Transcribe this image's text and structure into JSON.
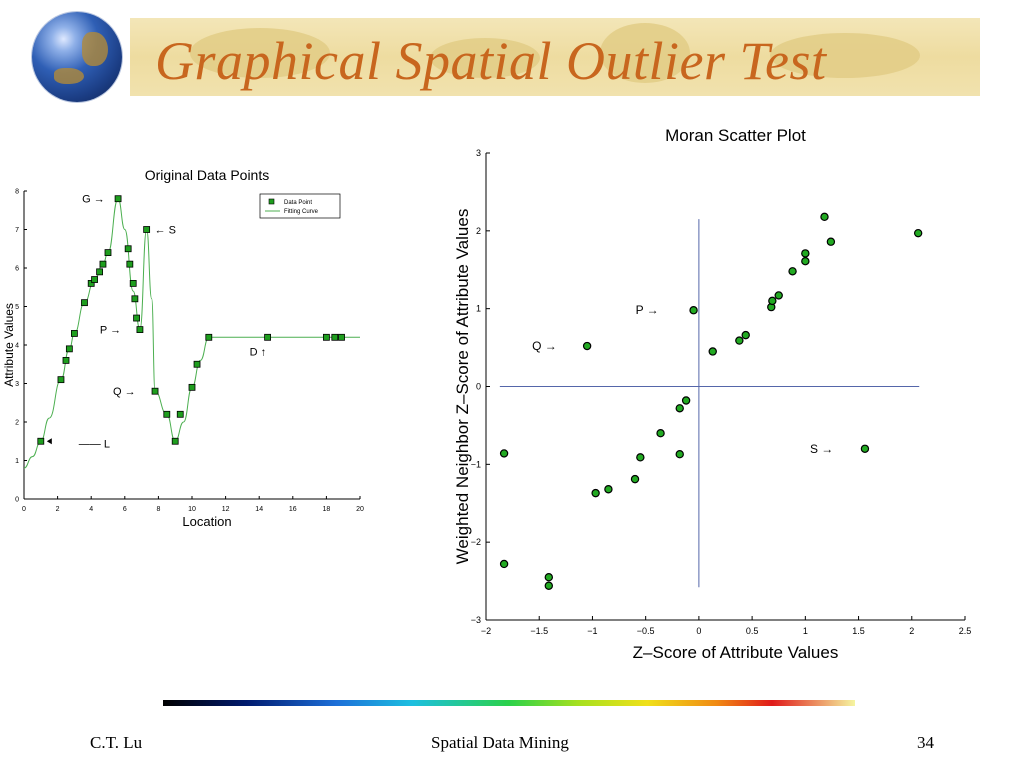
{
  "slide": {
    "title": "Graphical Spatial Outlier Test",
    "footer_left": "C.T. Lu",
    "footer_center": "Spatial Data Mining",
    "footer_right": "34"
  },
  "chart_data": [
    {
      "type": "line",
      "title": "Original Data Points",
      "xlabel": "Location",
      "ylabel": "Attribute Values",
      "xlim": [
        0,
        20
      ],
      "ylim": [
        0,
        8
      ],
      "xticks": [
        0,
        2,
        4,
        6,
        8,
        10,
        12,
        14,
        16,
        18,
        20
      ],
      "yticks": [
        0,
        1,
        2,
        3,
        4,
        5,
        6,
        7,
        8
      ],
      "legend": {
        "position": "top-right",
        "entries": [
          "Data Point",
          "Fitting Curve"
        ]
      },
      "series": [
        {
          "name": "Data Point",
          "x": [
            1.0,
            2.2,
            2.5,
            2.7,
            3.0,
            3.6,
            4.0,
            4.2,
            4.5,
            4.7,
            5.0,
            5.6,
            6.2,
            6.3,
            6.5,
            6.6,
            6.7,
            6.9,
            7.3,
            7.8,
            8.5,
            9.0,
            9.3,
            10.0,
            10.3,
            11.0,
            14.5,
            18.0,
            18.5,
            18.9
          ],
          "y": [
            1.5,
            3.1,
            3.6,
            3.9,
            4.3,
            5.1,
            5.6,
            5.7,
            5.9,
            6.1,
            6.4,
            7.8,
            6.5,
            6.1,
            5.6,
            5.2,
            4.7,
            4.4,
            7.0,
            2.8,
            2.2,
            1.5,
            2.2,
            2.9,
            3.5,
            4.2,
            4.2,
            4.2,
            4.2,
            4.2
          ]
        },
        {
          "name": "Fitting Curve",
          "x": [
            0.0,
            0.5,
            1.0,
            1.5,
            2.2,
            2.7,
            3.0,
            3.6,
            4.2,
            4.7,
            5.0,
            5.6,
            6.0,
            6.5,
            6.9,
            7.3,
            7.6,
            7.8,
            8.5,
            9.0,
            9.5,
            10.0,
            10.5,
            11.0,
            12.0,
            14.5,
            18.0,
            20.0
          ],
          "y": [
            0.8,
            1.1,
            1.5,
            2.1,
            3.1,
            3.9,
            4.3,
            5.1,
            5.7,
            6.1,
            6.4,
            7.8,
            7.0,
            5.4,
            4.4,
            7.0,
            5.2,
            2.8,
            2.2,
            1.5,
            2.0,
            2.9,
            3.6,
            4.2,
            4.2,
            4.2,
            4.2,
            4.2
          ]
        }
      ],
      "annotations": [
        {
          "text": "G",
          "x": 5.6,
          "y": 7.8
        },
        {
          "text": "S",
          "x": 7.3,
          "y": 7.0
        },
        {
          "text": "P",
          "x": 6.9,
          "y": 4.4
        },
        {
          "text": "Q",
          "x": 7.8,
          "y": 2.8
        },
        {
          "text": "D",
          "x": 14.5,
          "y": 4.2
        },
        {
          "text": "L",
          "x": 1.0,
          "y": 1.5
        }
      ],
      "colors": {
        "marker": "#1e9e1e",
        "line": "#4caf50"
      }
    },
    {
      "type": "scatter",
      "title": "Moran Scatter Plot",
      "xlabel": "Z–Score of Attribute Values",
      "ylabel": "Weighted Neighbor Z–Score of Attribute Values",
      "xlim": [
        -2,
        2.5
      ],
      "ylim": [
        -3,
        3
      ],
      "xticks": [
        -2,
        -1.5,
        -1,
        -0.5,
        0,
        0.5,
        1,
        1.5,
        2,
        2.5
      ],
      "yticks": [
        -3,
        -2,
        -1,
        0,
        1,
        2,
        3
      ],
      "points": {
        "x": [
          -1.83,
          -1.83,
          -1.41,
          -1.41,
          -1.05,
          -0.97,
          -0.85,
          -0.6,
          -0.55,
          -0.36,
          -0.18,
          -0.18,
          -0.12,
          -0.05,
          0.13,
          0.38,
          0.44,
          0.68,
          0.69,
          0.75,
          0.88,
          1.0,
          1.0,
          1.18,
          1.24,
          1.56,
          2.06
        ],
        "y": [
          -0.86,
          -2.28,
          -2.45,
          -2.56,
          0.52,
          -1.37,
          -1.32,
          -1.19,
          -0.91,
          -0.6,
          -0.87,
          -0.28,
          -0.18,
          0.98,
          0.45,
          0.59,
          0.66,
          1.02,
          1.1,
          1.17,
          1.48,
          1.61,
          1.71,
          2.18,
          1.86,
          -0.8,
          1.97
        ]
      },
      "annotations": [
        {
          "text": "P",
          "x": -0.05,
          "y": 0.98
        },
        {
          "text": "Q",
          "x": -1.05,
          "y": 0.52
        },
        {
          "text": "S",
          "x": 1.56,
          "y": -0.8
        }
      ],
      "colors": {
        "marker": "#22aa22",
        "axis_lines": "#5566aa"
      }
    }
  ]
}
